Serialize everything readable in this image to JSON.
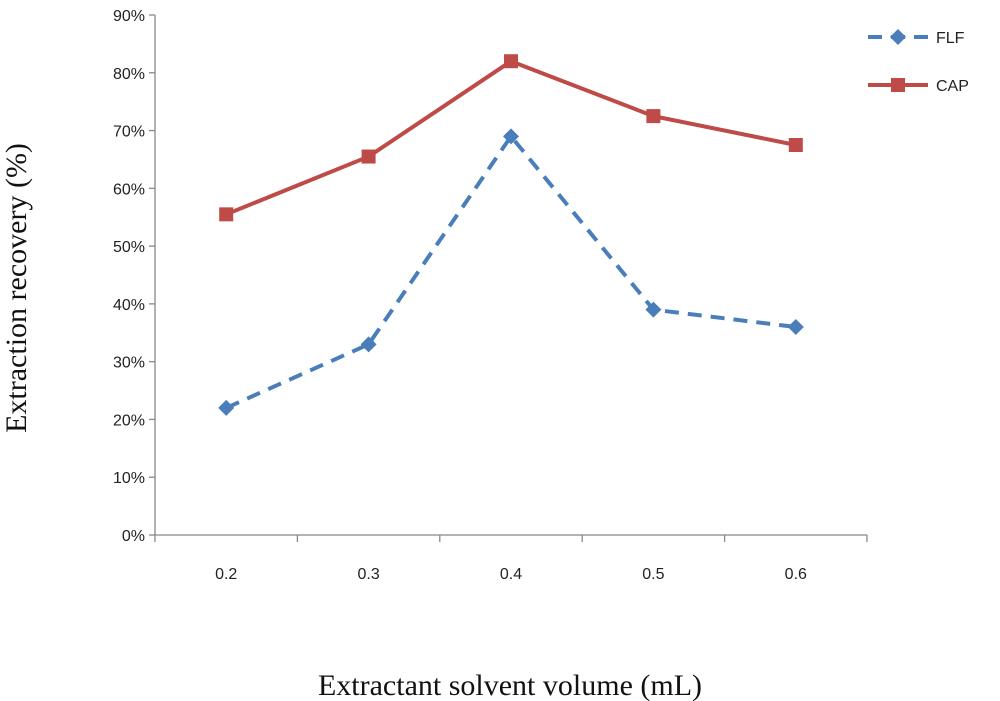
{
  "chart_data": {
    "type": "line",
    "categories": [
      "0.2",
      "0.3",
      "0.4",
      "0.5",
      "0.6"
    ],
    "series": [
      {
        "name": "FLF",
        "values": [
          22,
          33,
          69,
          39,
          36
        ],
        "color": "#4a7ebb",
        "line_style": "dashed",
        "marker": "diamond"
      },
      {
        "name": "CAP",
        "values": [
          55.5,
          65.5,
          82,
          72.5,
          67.5
        ],
        "color": "#be4b48",
        "line_style": "solid",
        "marker": "square"
      }
    ],
    "y_ticks": [
      "0%",
      "10%",
      "20%",
      "30%",
      "40%",
      "50%",
      "60%",
      "70%",
      "80%",
      "90%"
    ],
    "ylim": [
      0,
      90
    ],
    "xlabel": "Extractant solvent volume (mL)",
    "ylabel": "Extraction recovery (%)",
    "grid": false,
    "legend_position": "top-right"
  }
}
